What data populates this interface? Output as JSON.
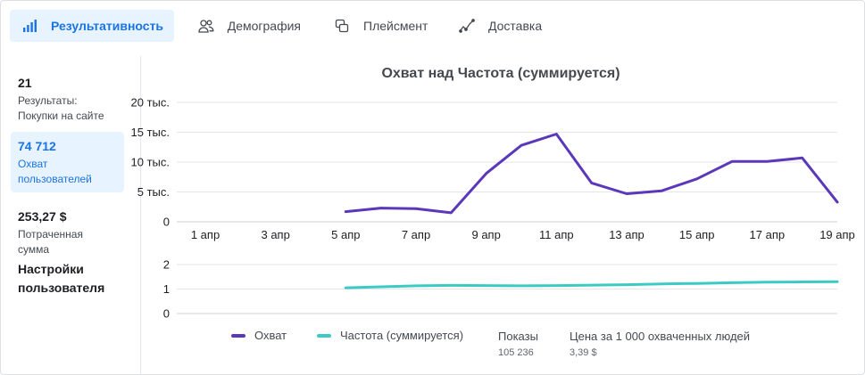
{
  "tabs": [
    {
      "label": "Результативность",
      "icon": "bar-chart-icon",
      "active": true
    },
    {
      "label": "Демография",
      "icon": "people-icon",
      "active": false
    },
    {
      "label": "Плейсмент",
      "icon": "placement-icon",
      "active": false
    },
    {
      "label": "Доставка",
      "icon": "delivery-icon",
      "active": false
    }
  ],
  "metrics": [
    {
      "value": "21",
      "label": "Результаты: Покупки на сайте",
      "active": false
    },
    {
      "value": "74 712",
      "label": "Охват пользователей",
      "active": true
    },
    {
      "value": "253,27 $",
      "label": "Потраченная сумма",
      "active": false
    }
  ],
  "user_settings": "Настройки пользователя",
  "colors": {
    "accent": "#1b74e4",
    "reach": "#5b38b9",
    "frequency": "#3ccbc4"
  },
  "legend": {
    "reach": "Охват",
    "frequency": "Частота (суммируется)",
    "impressions_label": "Показы",
    "impressions_value": "105 236",
    "cpm_label": "Цена за 1 000 охваченных людей",
    "cpm_value": "3,39 $"
  },
  "chart_data": [
    {
      "type": "line",
      "title": "Охват над Частота (суммируется)",
      "x": [
        "1 апр",
        "2 апр",
        "3 апр",
        "4 апр",
        "5 апр",
        "6 апр",
        "7 апр",
        "8 апр",
        "9 апр",
        "10 апр",
        "11 апр",
        "12 апр",
        "13 апр",
        "14 апр",
        "15 апр",
        "16 апр",
        "17 апр",
        "18 апр",
        "19 апр"
      ],
      "xtick_labels": [
        "1 апр",
        "3 апр",
        "5 апр",
        "7 апр",
        "9 апр",
        "11 апр",
        "13 апр",
        "15 апр",
        "17 апр",
        "19 апр"
      ],
      "ytick_labels": [
        "0",
        "5 тыс.",
        "10 тыс.",
        "15 тыс.",
        "20 тыс."
      ],
      "ylim": [
        0,
        20000
      ],
      "grid": true,
      "series": [
        {
          "name": "Охват",
          "values": [
            null,
            null,
            null,
            null,
            1700,
            2300,
            2200,
            1500,
            8100,
            12800,
            14700,
            6500,
            4700,
            5200,
            7200,
            10100,
            10100,
            10700,
            3300
          ]
        }
      ]
    },
    {
      "type": "line",
      "ytick_labels": [
        "0",
        "1",
        "2"
      ],
      "ylim": [
        0,
        2
      ],
      "grid": true,
      "series": [
        {
          "name": "Частота (суммируется)",
          "values": [
            null,
            null,
            null,
            null,
            1.05,
            1.09,
            1.13,
            1.15,
            1.14,
            1.13,
            1.14,
            1.16,
            1.18,
            1.21,
            1.23,
            1.26,
            1.28,
            1.29,
            1.3
          ]
        }
      ]
    }
  ]
}
